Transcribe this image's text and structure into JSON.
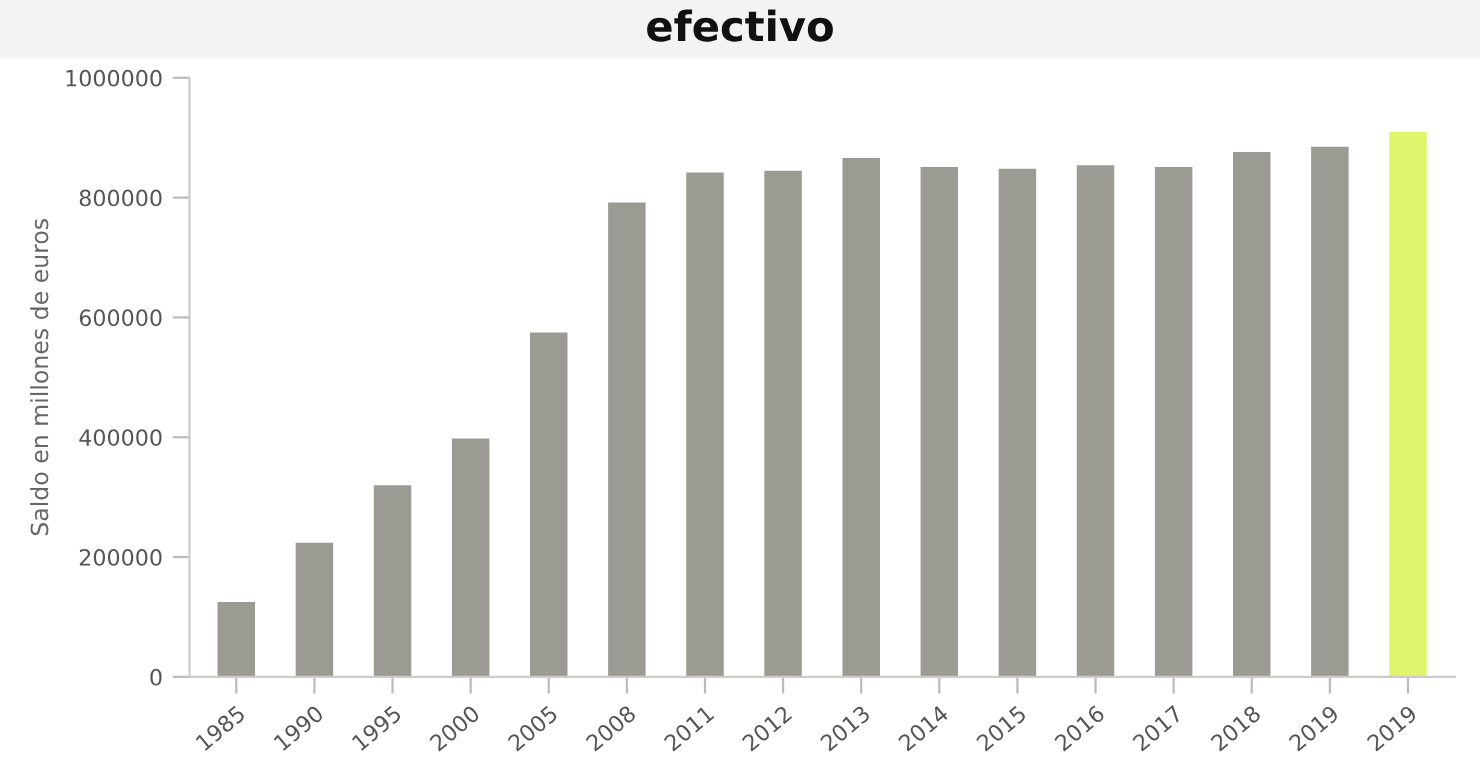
{
  "chart_data": {
    "type": "bar",
    "title": "efectivo",
    "ylabel": "Saldo en millones de euros",
    "categories": [
      "1985",
      "1990",
      "1995",
      "2000",
      "2005",
      "2008",
      "2011",
      "2012",
      "2013",
      "2014",
      "2015",
      "2016",
      "2017",
      "2018",
      "2019",
      "2019"
    ],
    "values": [
      125000,
      224000,
      320000,
      398000,
      575000,
      792000,
      842000,
      845000,
      866000,
      851000,
      848000,
      854000,
      851000,
      876000,
      885000,
      910000
    ],
    "colors": [
      "#9b9b93",
      "#9b9b93",
      "#9b9b93",
      "#9b9b93",
      "#9b9b93",
      "#9b9b93",
      "#9b9b93",
      "#9b9b93",
      "#9b9b93",
      "#9b9b93",
      "#9b9b93",
      "#9b9b93",
      "#9b9b93",
      "#9b9b93",
      "#9b9b93",
      "#e0f46c"
    ],
    "ylim": [
      0,
      1000000
    ],
    "yticks": [
      0,
      200000,
      400000,
      600000,
      800000,
      1000000
    ],
    "grid": false,
    "legend": false
  }
}
